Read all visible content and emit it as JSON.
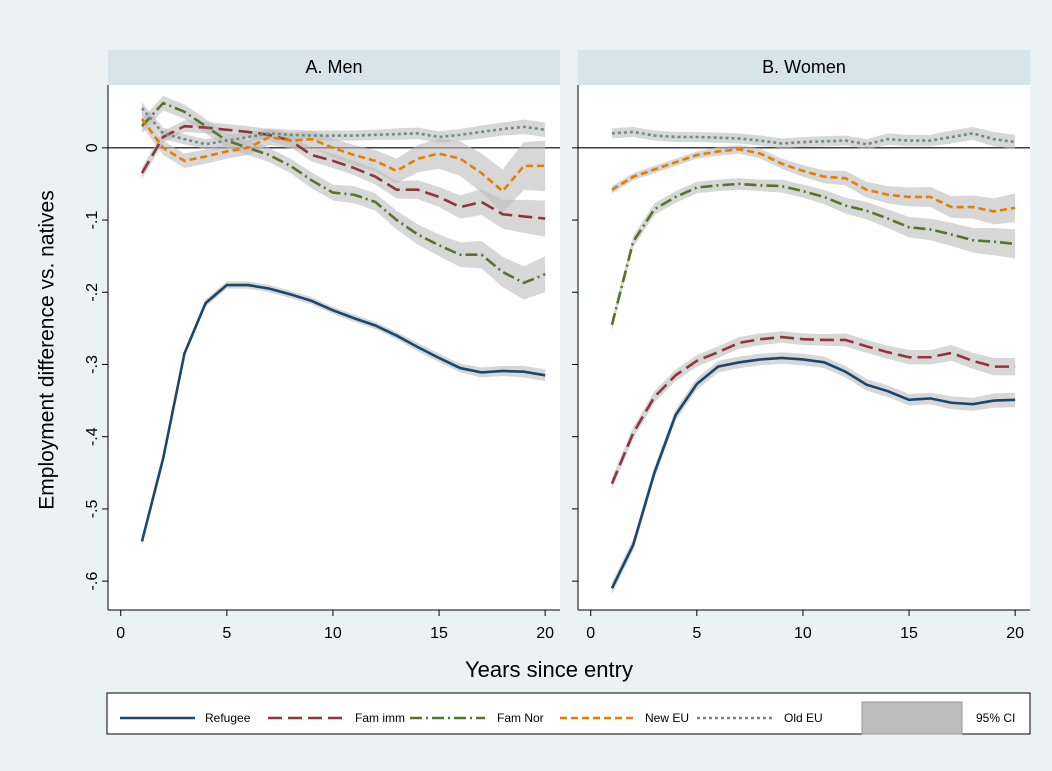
{
  "ylabel": "Employment difference vs. natives",
  "xlabel": "Years since entry",
  "ci_label": "95% CI",
  "ci_color": "#bdbdbd",
  "chart_data": [
    {
      "type": "line",
      "title": "A. Men",
      "xlim": [
        -0.6,
        20.7
      ],
      "ylim": [
        -0.64,
        0.087
      ],
      "xticks": [
        0,
        5,
        10,
        15,
        20
      ],
      "yticks": [
        0,
        {
          "value": -0.1,
          "label": "-.1"
        },
        {
          "value": -0.2,
          "label": "-.2"
        },
        {
          "value": -0.3,
          "label": "-.3"
        },
        {
          "value": -0.4,
          "label": "-.4"
        },
        {
          "value": -0.5,
          "label": "-.5"
        },
        {
          "value": -0.6,
          "label": "-.6"
        }
      ],
      "x": [
        1,
        2,
        3,
        4,
        5,
        6,
        7,
        8,
        9,
        10,
        11,
        12,
        13,
        14,
        15,
        16,
        17,
        18,
        19,
        20
      ],
      "series": [
        {
          "name": "Refugee",
          "color": "#1a476f",
          "style": "solid",
          "values": [
            -0.545,
            -0.43,
            -0.285,
            -0.215,
            -0.19,
            -0.19,
            -0.195,
            -0.203,
            -0.212,
            -0.225,
            -0.236,
            -0.246,
            -0.26,
            -0.276,
            -0.291,
            -0.305,
            -0.311,
            -0.309,
            -0.31,
            -0.315
          ],
          "ci": [
            0.005,
            0.005,
            0.005,
            0.005,
            0.005,
            0.005,
            0.005,
            0.005,
            0.005,
            0.005,
            0.005,
            0.005,
            0.005,
            0.006,
            0.006,
            0.006,
            0.007,
            0.007,
            0.008,
            0.008
          ]
        },
        {
          "name": "Fam imm",
          "color": "#90353b",
          "style": "longdash",
          "values": [
            -0.035,
            0.015,
            0.03,
            0.028,
            0.025,
            0.022,
            0.018,
            0.01,
            -0.01,
            -0.018,
            -0.028,
            -0.04,
            -0.058,
            -0.058,
            -0.068,
            -0.082,
            -0.075,
            -0.092,
            -0.095,
            -0.098
          ],
          "ci": [
            0.008,
            0.008,
            0.008,
            0.008,
            0.008,
            0.008,
            0.008,
            0.009,
            0.009,
            0.01,
            0.01,
            0.011,
            0.012,
            0.013,
            0.014,
            0.016,
            0.018,
            0.02,
            0.023,
            0.025
          ]
        },
        {
          "name": "Fam Nor",
          "color": "#55752f",
          "style": "dashdot",
          "values": [
            0.03,
            0.062,
            0.05,
            0.03,
            0.01,
            0.0,
            -0.01,
            -0.025,
            -0.045,
            -0.062,
            -0.065,
            -0.075,
            -0.1,
            -0.12,
            -0.135,
            -0.148,
            -0.148,
            -0.172,
            -0.187,
            -0.175
          ],
          "ci": [
            0.01,
            0.01,
            0.01,
            0.01,
            0.01,
            0.01,
            0.01,
            0.01,
            0.011,
            0.011,
            0.012,
            0.012,
            0.013,
            0.014,
            0.015,
            0.017,
            0.019,
            0.021,
            0.023,
            0.025
          ]
        },
        {
          "name": "New EU",
          "color": "#e37e00",
          "style": "dash",
          "values": [
            0.04,
            0.0,
            -0.018,
            -0.012,
            -0.005,
            0.0,
            0.015,
            0.01,
            0.012,
            0.0,
            -0.01,
            -0.018,
            -0.032,
            -0.015,
            -0.008,
            -0.015,
            -0.035,
            -0.06,
            -0.025,
            -0.025
          ],
          "ci": [
            0.01,
            0.01,
            0.01,
            0.01,
            0.01,
            0.01,
            0.011,
            0.011,
            0.012,
            0.013,
            0.014,
            0.015,
            0.017,
            0.019,
            0.021,
            0.024,
            0.027,
            0.03,
            0.033,
            0.035
          ]
        },
        {
          "name": "Old EU",
          "color": "#6e8e84",
          "style": "dot",
          "values": [
            0.055,
            0.02,
            0.012,
            0.005,
            0.01,
            0.015,
            0.02,
            0.018,
            0.017,
            0.017,
            0.017,
            0.018,
            0.019,
            0.02,
            0.015,
            0.018,
            0.022,
            0.026,
            0.029,
            0.025
          ],
          "ci": [
            0.008,
            0.008,
            0.007,
            0.007,
            0.007,
            0.007,
            0.007,
            0.007,
            0.007,
            0.007,
            0.007,
            0.007,
            0.008,
            0.008,
            0.008,
            0.008,
            0.009,
            0.009,
            0.01,
            0.01
          ]
        }
      ]
    },
    {
      "type": "line",
      "title": "B. Women",
      "xlim": [
        -0.6,
        20.7
      ],
      "xticks": [
        0,
        5,
        10,
        15,
        20
      ],
      "x": [
        1,
        2,
        3,
        4,
        5,
        6,
        7,
        8,
        9,
        10,
        11,
        12,
        13,
        14,
        15,
        16,
        17,
        18,
        19,
        20
      ],
      "series": [
        {
          "values": [
            -0.61,
            -0.55,
            -0.45,
            -0.37,
            -0.327,
            -0.303,
            -0.297,
            -0.293,
            -0.291,
            -0.293,
            -0.297,
            -0.31,
            -0.328,
            -0.337,
            -0.349,
            -0.347,
            -0.353,
            -0.355,
            -0.35,
            -0.349
          ],
          "ci": [
            0.008,
            0.008,
            0.008,
            0.008,
            0.008,
            0.008,
            0.008,
            0.008,
            0.008,
            0.008,
            0.008,
            0.008,
            0.008,
            0.008,
            0.008,
            0.008,
            0.009,
            0.009,
            0.01,
            0.01
          ]
        },
        {
          "values": [
            -0.465,
            -0.395,
            -0.345,
            -0.315,
            -0.295,
            -0.283,
            -0.27,
            -0.265,
            -0.262,
            -0.265,
            -0.266,
            -0.266,
            -0.275,
            -0.283,
            -0.29,
            -0.29,
            -0.284,
            -0.295,
            -0.303,
            -0.303
          ],
          "ci": [
            0.008,
            0.008,
            0.008,
            0.008,
            0.008,
            0.008,
            0.008,
            0.008,
            0.008,
            0.008,
            0.008,
            0.009,
            0.009,
            0.009,
            0.01,
            0.01,
            0.011,
            0.011,
            0.012,
            0.012
          ]
        },
        {
          "values": [
            -0.245,
            -0.13,
            -0.085,
            -0.068,
            -0.055,
            -0.052,
            -0.05,
            -0.052,
            -0.053,
            -0.06,
            -0.068,
            -0.08,
            -0.087,
            -0.098,
            -0.11,
            -0.113,
            -0.12,
            -0.128,
            -0.13,
            -0.133
          ],
          "ci": [
            0.008,
            0.008,
            0.008,
            0.008,
            0.008,
            0.008,
            0.008,
            0.008,
            0.009,
            0.009,
            0.01,
            0.011,
            0.012,
            0.013,
            0.014,
            0.015,
            0.016,
            0.017,
            0.019,
            0.02
          ]
        },
        {
          "values": [
            -0.058,
            -0.04,
            -0.03,
            -0.02,
            -0.01,
            -0.005,
            -0.002,
            -0.008,
            -0.022,
            -0.032,
            -0.04,
            -0.042,
            -0.058,
            -0.065,
            -0.068,
            -0.068,
            -0.082,
            -0.082,
            -0.088,
            -0.083
          ],
          "ci": [
            0.005,
            0.005,
            0.005,
            0.005,
            0.005,
            0.006,
            0.006,
            0.007,
            0.007,
            0.008,
            0.009,
            0.01,
            0.011,
            0.012,
            0.013,
            0.014,
            0.015,
            0.016,
            0.018,
            0.02
          ]
        },
        {
          "values": [
            0.02,
            0.022,
            0.017,
            0.015,
            0.015,
            0.014,
            0.013,
            0.01,
            0.006,
            0.008,
            0.009,
            0.01,
            0.005,
            0.012,
            0.01,
            0.01,
            0.015,
            0.02,
            0.012,
            0.008
          ],
          "ci": [
            0.007,
            0.007,
            0.007,
            0.007,
            0.007,
            0.007,
            0.007,
            0.007,
            0.007,
            0.007,
            0.007,
            0.007,
            0.007,
            0.008,
            0.008,
            0.008,
            0.009,
            0.009,
            0.01,
            0.01
          ]
        }
      ]
    }
  ]
}
